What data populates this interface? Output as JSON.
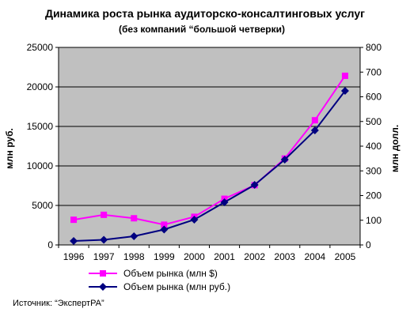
{
  "chart_data": {
    "type": "line",
    "title": "Динамика роста рынка аудиторско-консалтинговых услуг",
    "subtitle": "(без компаний “большой четверки)",
    "categories": [
      "1996",
      "1997",
      "1998",
      "1999",
      "2000",
      "2001",
      "2002",
      "2003",
      "2004",
      "2005"
    ],
    "ylabel_left": "млн руб.",
    "ylabel_right": "млн долл.",
    "ylim_left": [
      0,
      25000
    ],
    "ylim_right": [
      0,
      800
    ],
    "yticks_left": [
      "0",
      "5000",
      "10000",
      "15000",
      "20000",
      "25000"
    ],
    "yticks_right": [
      "0",
      "100",
      "200",
      "300",
      "400",
      "500",
      "600",
      "700",
      "800"
    ],
    "grid": true,
    "series": [
      {
        "name": "Объем рынка (млн $)",
        "axis": "right",
        "color": "#ff00ff",
        "marker": "square",
        "values": [
          102,
          122,
          108,
          82,
          114,
          187,
          242,
          350,
          505,
          685
        ]
      },
      {
        "name": "Объем рынка (млн руб.)",
        "axis": "left",
        "color": "#000080",
        "marker": "diamond",
        "values": [
          500,
          650,
          1100,
          1950,
          3200,
          5400,
          7600,
          10800,
          14500,
          19500
        ]
      }
    ],
    "legend_position": "bottom",
    "source": "Источник: “ЭкспертРА”",
    "plot_background": "#c0c0c0",
    "page_background": "#ffffff"
  }
}
